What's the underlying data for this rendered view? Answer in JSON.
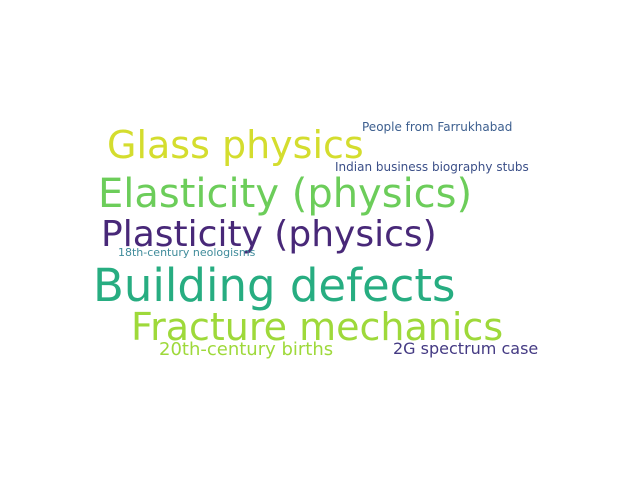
{
  "words": [
    {
      "text": "Glass physics",
      "color": "#d4dd2e"
    },
    {
      "text": "Elasticity (physics)",
      "color": "#6ccd5a"
    },
    {
      "text": "Plasticity (physics)",
      "color": "#482878"
    },
    {
      "text": "Building defects",
      "color": "#27ad81"
    },
    {
      "text": "Fracture mechanics",
      "color": "#9ed93a"
    },
    {
      "text": "20th-century births",
      "color": "#9ed93a"
    },
    {
      "text": "2G spectrum case",
      "color": "#443a83"
    },
    {
      "text": "People from Farrukhabad",
      "color": "#3d5f8f"
    },
    {
      "text": "Indian business biography stubs",
      "color": "#3b4f88"
    },
    {
      "text": "18th-century neologisms",
      "color": "#3f8b9a"
    }
  ]
}
